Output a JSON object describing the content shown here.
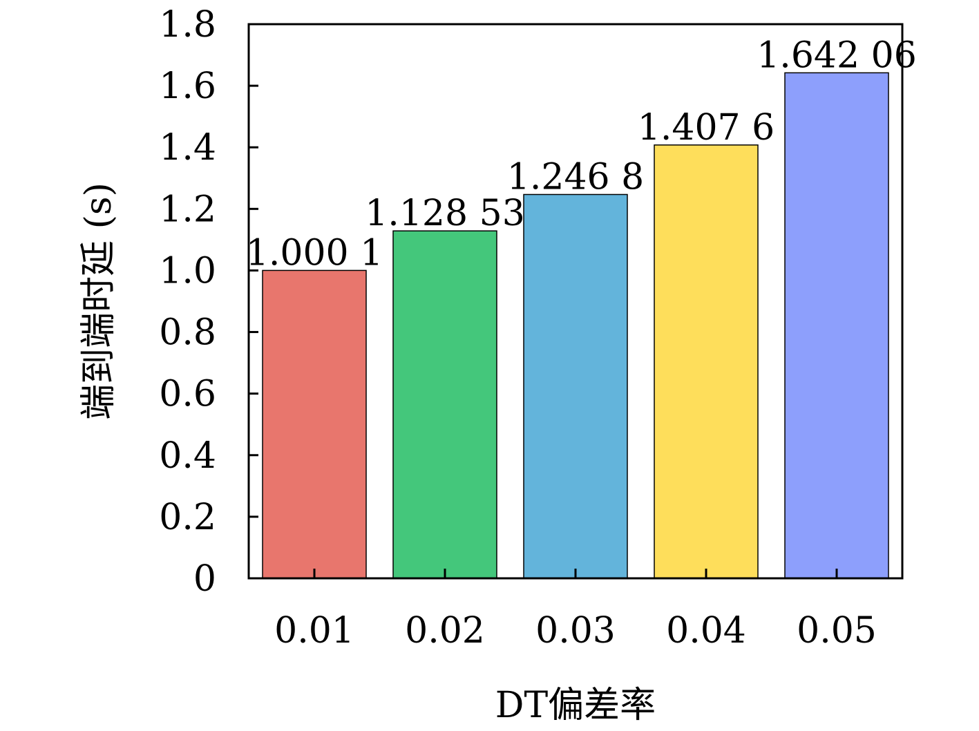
{
  "chart_data": {
    "type": "bar",
    "xlabel": "DT偏差率",
    "ylabel": "端到端时延 (s)",
    "categories": [
      "0.01",
      "0.02",
      "0.03",
      "0.04",
      "0.05"
    ],
    "values": [
      1.0001,
      1.12853,
      1.2468,
      1.4076,
      1.64206
    ],
    "value_labels": [
      "1.000 1",
      "1.128 53",
      "1.246 8",
      "1.407 6",
      "1.642 06"
    ],
    "bar_colors": [
      "#E8766D",
      "#44C77B",
      "#63B4DB",
      "#FEDE5B",
      "#8D9FFC"
    ],
    "ylim": [
      0,
      1.8
    ],
    "yticks": [
      0,
      0.2,
      0.4,
      0.6,
      0.8,
      1.0,
      1.2,
      1.4,
      1.6,
      1.8
    ],
    "ytick_labels": [
      "0",
      "0.2",
      "0.4",
      "0.6",
      "0.8",
      "1.0",
      "1.2",
      "1.4",
      "1.6",
      "1.8"
    ],
    "grid": false,
    "legend": "none"
  }
}
